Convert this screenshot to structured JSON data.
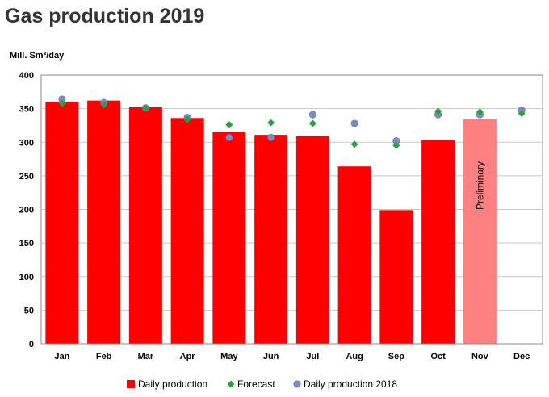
{
  "chart_data": {
    "type": "bar",
    "title": "Gas production 2019",
    "ylabel": "Mill. Sm³/day",
    "xlabel": "",
    "ylim": [
      0,
      400
    ],
    "yticks": [
      0,
      50,
      100,
      150,
      200,
      250,
      300,
      350,
      400
    ],
    "grid": true,
    "legend_position": "bottom",
    "categories": [
      "Jan",
      "Feb",
      "Mar",
      "Apr",
      "May",
      "Jun",
      "Jul",
      "Aug",
      "Sep",
      "Oct",
      "Nov",
      "Dec"
    ],
    "series": [
      {
        "name": "Daily production",
        "kind": "bar",
        "color": "#ff0000",
        "values": [
          360,
          362,
          352,
          336,
          315,
          311,
          309,
          264,
          199,
          303,
          334,
          null
        ],
        "preliminary_color": "#ff8080",
        "preliminary_index": 10
      },
      {
        "name": "Forecast",
        "kind": "marker-diamond",
        "color": "#2e9e44",
        "values": [
          358,
          356,
          351,
          334,
          326,
          329,
          328,
          297,
          295,
          346,
          345,
          343
        ]
      },
      {
        "name": "Daily production 2018",
        "kind": "marker-circle",
        "color": "#7b8cc4",
        "values": [
          364,
          359,
          351,
          337,
          307,
          307,
          341,
          328,
          302,
          341,
          341,
          348
        ]
      }
    ],
    "annotations": [
      {
        "label": "Preliminary",
        "category": "Nov"
      }
    ]
  }
}
